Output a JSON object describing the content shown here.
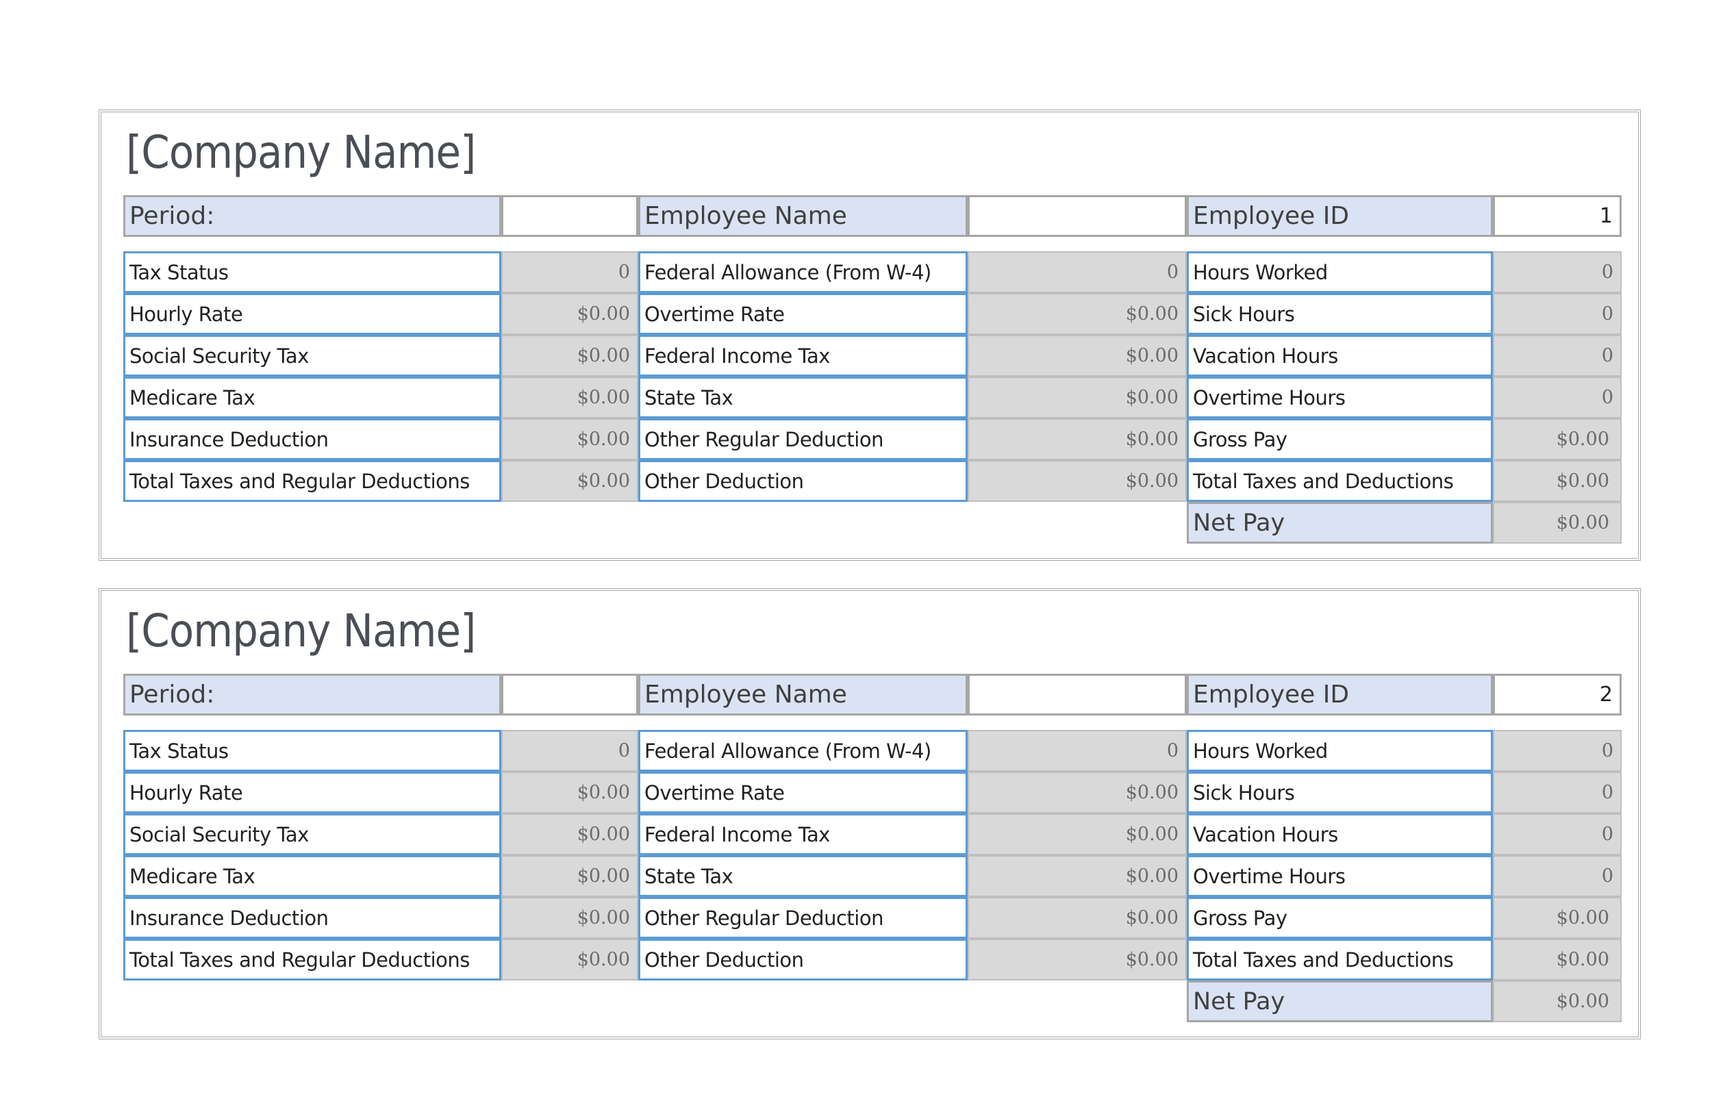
{
  "colors": {
    "label_bg": "#dae3f3",
    "accent_border": "#5b9bd5",
    "value_bg": "#d9d9d9",
    "frame": "#a6a6a6"
  },
  "stubs": [
    {
      "company_name": "[Company Name]",
      "period_label": "Period:",
      "period_value": "",
      "employee_name_label": "Employee Name",
      "employee_name_value": "",
      "employee_id_label": "Employee ID",
      "employee_id_value": "1",
      "rows": [
        [
          {
            "label": "Tax Status",
            "value": "0"
          },
          {
            "label": "Federal Allowance (From W-4)",
            "value": "0"
          },
          {
            "label": "Hours Worked",
            "value": "0"
          }
        ],
        [
          {
            "label": "Hourly Rate",
            "value": "$0.00"
          },
          {
            "label": "Overtime Rate",
            "value": "$0.00"
          },
          {
            "label": "Sick Hours",
            "value": "0"
          }
        ],
        [
          {
            "label": "Social Security Tax",
            "value": "$0.00"
          },
          {
            "label": "Federal Income Tax",
            "value": "$0.00"
          },
          {
            "label": "Vacation Hours",
            "value": "0"
          }
        ],
        [
          {
            "label": "Medicare Tax",
            "value": "$0.00"
          },
          {
            "label": "State Tax",
            "value": "$0.00"
          },
          {
            "label": "Overtime Hours",
            "value": "0"
          }
        ],
        [
          {
            "label": "Insurance Deduction",
            "value": "$0.00"
          },
          {
            "label": "Other Regular Deduction",
            "value": "$0.00"
          },
          {
            "label": "Gross Pay",
            "value": "$0.00"
          }
        ],
        [
          {
            "label": "Total Taxes and Regular Deductions",
            "value": "$0.00"
          },
          {
            "label": "Other Deduction",
            "value": "$0.00"
          },
          {
            "label": "Total Taxes and Deductions",
            "value": "$0.00"
          }
        ]
      ],
      "net_pay_label": "Net Pay",
      "net_pay_value": "$0.00"
    },
    {
      "company_name": "[Company Name]",
      "period_label": "Period:",
      "period_value": "",
      "employee_name_label": "Employee Name",
      "employee_name_value": "",
      "employee_id_label": "Employee ID",
      "employee_id_value": "2",
      "rows": [
        [
          {
            "label": "Tax Status",
            "value": "0"
          },
          {
            "label": "Federal Allowance (From W-4)",
            "value": "0"
          },
          {
            "label": "Hours Worked",
            "value": "0"
          }
        ],
        [
          {
            "label": "Hourly Rate",
            "value": "$0.00"
          },
          {
            "label": "Overtime Rate",
            "value": "$0.00"
          },
          {
            "label": "Sick Hours",
            "value": "0"
          }
        ],
        [
          {
            "label": "Social Security Tax",
            "value": "$0.00"
          },
          {
            "label": "Federal Income Tax",
            "value": "$0.00"
          },
          {
            "label": "Vacation Hours",
            "value": "0"
          }
        ],
        [
          {
            "label": "Medicare Tax",
            "value": "$0.00"
          },
          {
            "label": "State Tax",
            "value": "$0.00"
          },
          {
            "label": "Overtime Hours",
            "value": "0"
          }
        ],
        [
          {
            "label": "Insurance Deduction",
            "value": "$0.00"
          },
          {
            "label": "Other Regular Deduction",
            "value": "$0.00"
          },
          {
            "label": "Gross Pay",
            "value": "$0.00"
          }
        ],
        [
          {
            "label": "Total Taxes and Regular Deductions",
            "value": "$0.00"
          },
          {
            "label": "Other Deduction",
            "value": "$0.00"
          },
          {
            "label": "Total Taxes and Deductions",
            "value": "$0.00"
          }
        ]
      ],
      "net_pay_label": "Net Pay",
      "net_pay_value": "$0.00"
    }
  ]
}
